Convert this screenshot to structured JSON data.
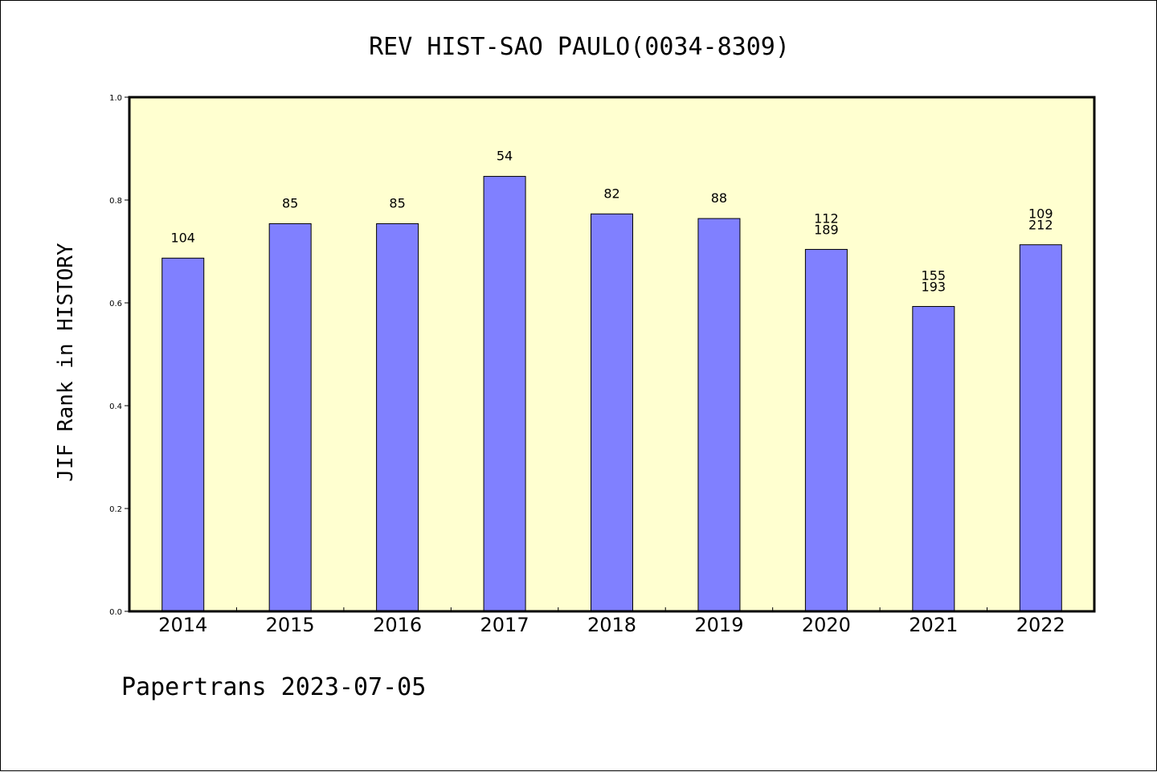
{
  "chart_data": {
    "type": "bar",
    "title": "REV HIST-SAO PAULO(0034-8309)",
    "ylabel": "JIF Rank in HISTORY",
    "xlabel": "",
    "ylim": [
      0,
      1.0
    ],
    "yticks": [
      "0.0",
      "0.2",
      "0.4",
      "0.6",
      "0.8",
      "1.0"
    ],
    "categories": [
      "2014",
      "2015",
      "2016",
      "2017",
      "2018",
      "2019",
      "2020",
      "2021",
      "2022"
    ],
    "values": [
      0.687,
      0.754,
      0.754,
      0.846,
      0.773,
      0.764,
      0.704,
      0.593,
      0.713
    ],
    "labels": [
      [
        "104"
      ],
      [
        "85"
      ],
      [
        "85"
      ],
      [
        "54"
      ],
      [
        "82"
      ],
      [
        "88"
      ],
      [
        "112",
        "189"
      ],
      [
        "155",
        "193"
      ],
      [
        "109",
        "212"
      ]
    ],
    "colors": {
      "plot_bg": "#ffffd0",
      "bar": "#8080ff"
    },
    "grid": false
  },
  "footer": "Papertrans 2023-07-05"
}
